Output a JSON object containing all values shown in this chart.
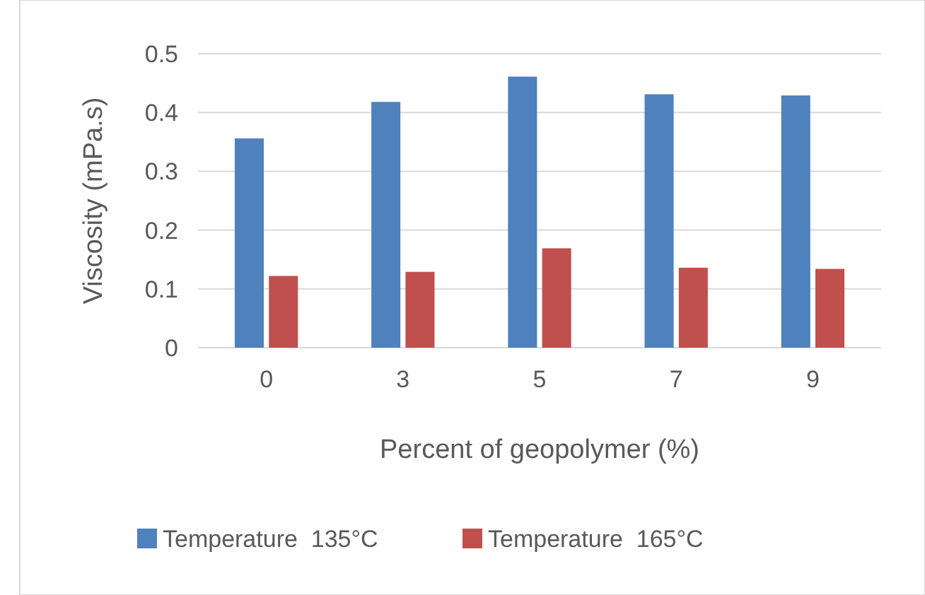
{
  "chart_data": {
    "type": "bar",
    "xlabel": "Percent of geopolymer (%)",
    "ylabel": "Viscosity (mPa.s)",
    "categories": [
      "0",
      "3",
      "5",
      "7",
      "9"
    ],
    "series": [
      {
        "name": "Temperature  135°C",
        "color": "#4f81bd",
        "values": [
          0.356,
          0.418,
          0.461,
          0.431,
          0.429
        ]
      },
      {
        "name": "Temperature  165°C",
        "color": "#c0504d",
        "values": [
          0.122,
          0.129,
          0.169,
          0.136,
          0.134
        ]
      }
    ],
    "ylim": [
      0,
      0.5
    ],
    "yticks": [
      0,
      0.1,
      0.2,
      0.3,
      0.4,
      0.5
    ],
    "grid": "y",
    "legend": "bottom"
  }
}
